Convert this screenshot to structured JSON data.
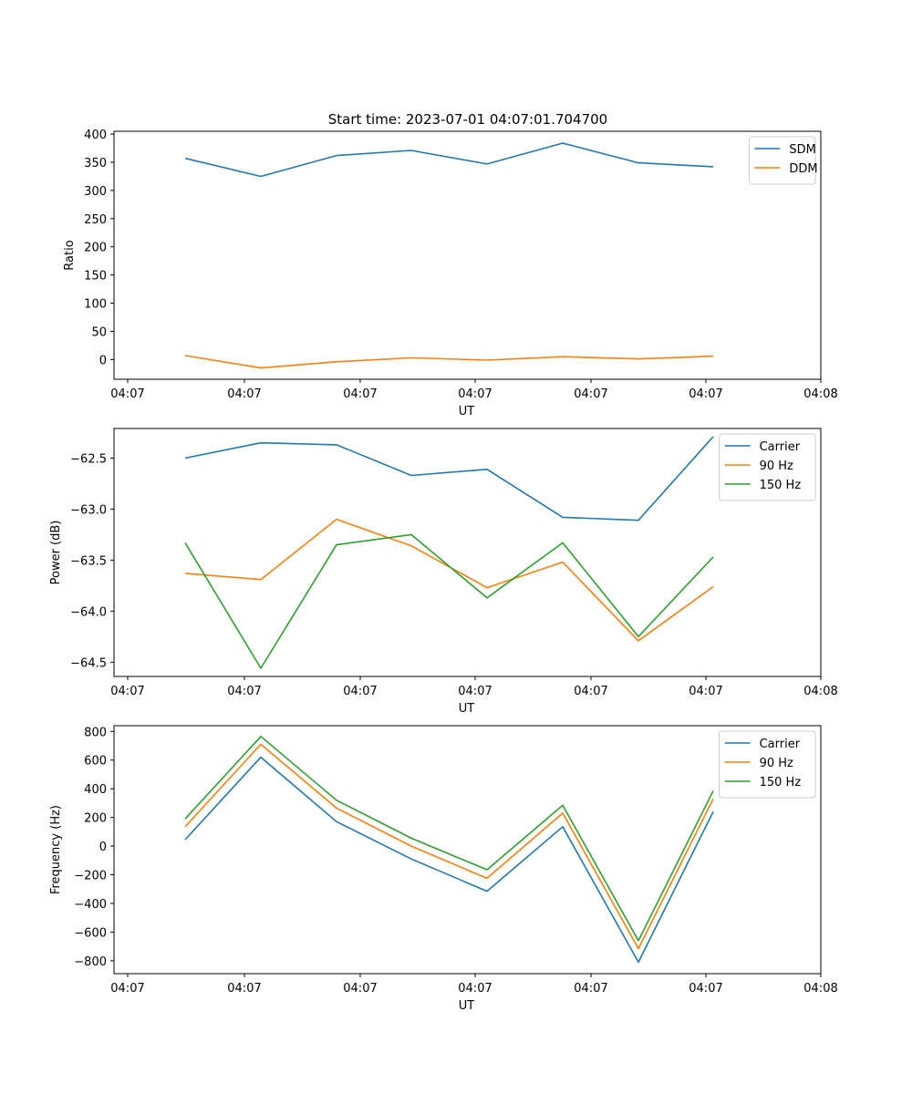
{
  "figure": {
    "title": "Start time: 2023-07-01 04:07:01.704700"
  },
  "chart_data": [
    {
      "type": "line",
      "title": "Start time: 2023-07-01 04:07:01.704700",
      "xlabel": "UT",
      "ylabel": "Ratio",
      "x_ticks": [
        "04:07",
        "04:07",
        "04:07",
        "04:07",
        "04:07",
        "04:07",
        "04:08"
      ],
      "y_ticks": [
        0,
        50,
        100,
        150,
        200,
        250,
        300,
        350,
        400
      ],
      "ylim": [
        -35,
        405
      ],
      "legend": "top-right",
      "series": [
        {
          "name": "SDM",
          "color": "#1f77b4",
          "values": [
            357,
            325,
            362,
            371,
            347,
            384,
            349,
            342
          ]
        },
        {
          "name": "DDM",
          "color": "#ff7f0e",
          "values": [
            7,
            -15,
            -4,
            3,
            -1,
            5,
            1,
            6
          ]
        }
      ]
    },
    {
      "type": "line",
      "title": "",
      "xlabel": "UT",
      "ylabel": "Power (dB)",
      "x_ticks": [
        "04:07",
        "04:07",
        "04:07",
        "04:07",
        "04:07",
        "04:07",
        "04:08"
      ],
      "y_ticks": [
        "−62.5",
        "−63.0",
        "−63.5",
        "−64.0",
        "−64.5"
      ],
      "y_tick_values": [
        -62.5,
        -63.0,
        -63.5,
        -64.0,
        -64.5
      ],
      "ylim": [
        -64.64,
        -62.21
      ],
      "legend": "top-right",
      "series": [
        {
          "name": "Carrier",
          "color": "#1f77b4",
          "values": [
            -62.5,
            -62.35,
            -62.37,
            -62.67,
            -62.61,
            -63.08,
            -63.11,
            -62.29
          ]
        },
        {
          "name": "90 Hz",
          "color": "#ff7f0e",
          "values": [
            -63.63,
            -63.69,
            -63.1,
            -63.36,
            -63.77,
            -63.52,
            -64.29,
            -63.76
          ]
        },
        {
          "name": "150 Hz",
          "color": "#2ca02c",
          "values": [
            -63.33,
            -64.56,
            -63.35,
            -63.25,
            -63.87,
            -63.33,
            -64.25,
            -63.47
          ]
        }
      ]
    },
    {
      "type": "line",
      "title": "",
      "xlabel": "UT",
      "ylabel": "Frequency (Hz)",
      "x_ticks": [
        "04:07",
        "04:07",
        "04:07",
        "04:07",
        "04:07",
        "04:07",
        "04:08"
      ],
      "y_ticks": [
        "800",
        "600",
        "400",
        "200",
        "0",
        "−200",
        "−400",
        "−600",
        "−800"
      ],
      "y_tick_values": [
        800,
        600,
        400,
        200,
        0,
        -200,
        -400,
        -600,
        -800
      ],
      "ylim": [
        -890,
        840
      ],
      "legend": "top-right",
      "series": [
        {
          "name": "Carrier",
          "color": "#1f77b4",
          "values": [
            45,
            620,
            170,
            -90,
            -315,
            135,
            -810,
            240
          ]
        },
        {
          "name": "90 Hz",
          "color": "#ff7f0e",
          "values": [
            135,
            710,
            265,
            0,
            -225,
            230,
            -715,
            330
          ]
        },
        {
          "name": "150 Hz",
          "color": "#2ca02c",
          "values": [
            190,
            765,
            320,
            55,
            -165,
            285,
            -660,
            385
          ]
        }
      ]
    }
  ]
}
